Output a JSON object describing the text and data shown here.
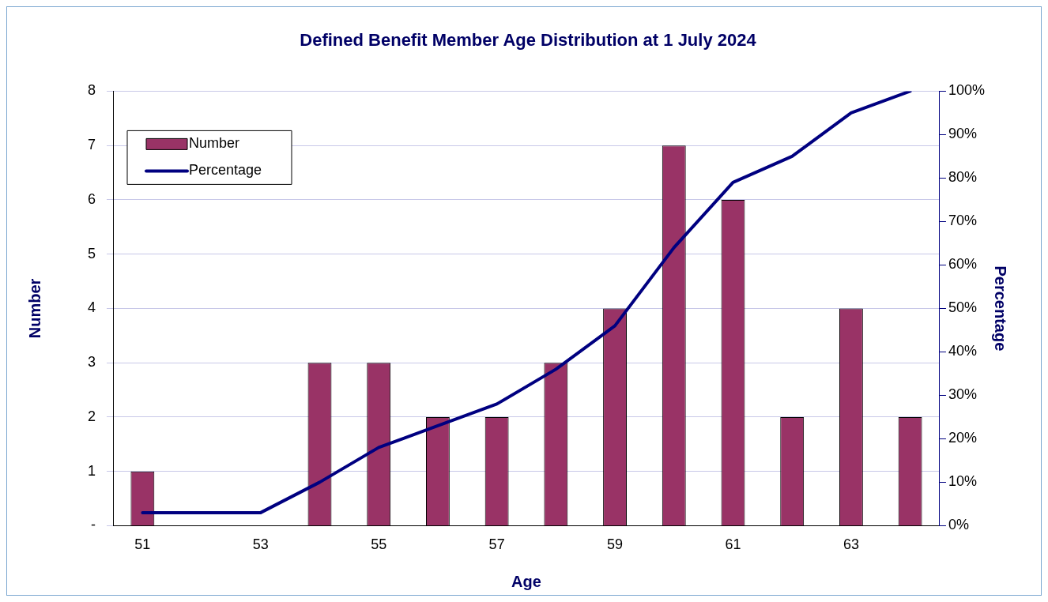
{
  "chart_data": {
    "type": "bar",
    "title": "Defined Benefit Member Age Distribution at 1 July 2024",
    "xlabel": "Age",
    "ylabel": "Number",
    "y2label": "Percentage",
    "categories": [
      "51",
      null,
      "53",
      null,
      "55",
      null,
      "57",
      null,
      "59",
      null,
      "61",
      null,
      "63",
      null
    ],
    "series": [
      {
        "name": "Number",
        "color": "#993366",
        "values": [
          1,
          0,
          0,
          3,
          3,
          2,
          2,
          3,
          4,
          7,
          6,
          2,
          4,
          2
        ]
      },
      {
        "name": "Percentage",
        "type": "line",
        "axis": "y2",
        "color": "#000080",
        "values": [
          3,
          3,
          3,
          10,
          18,
          23,
          28,
          36,
          46,
          64,
          79,
          85,
          95,
          100
        ]
      }
    ],
    "ylim": [
      0,
      8
    ],
    "yticks": [
      {
        "value": 0,
        "label": "-"
      },
      1,
      2,
      3,
      4,
      5,
      6,
      7,
      8
    ],
    "y2lim": [
      0,
      100
    ],
    "y2ticks": [
      {
        "value": 0,
        "label": "0%"
      },
      {
        "value": 10,
        "label": "10%"
      },
      {
        "value": 20,
        "label": "20%"
      },
      {
        "value": 30,
        "label": "30%"
      },
      {
        "value": 40,
        "label": "40%"
      },
      {
        "value": 50,
        "label": "50%"
      },
      {
        "value": 60,
        "label": "60%"
      },
      {
        "value": 70,
        "label": "70%"
      },
      {
        "value": 80,
        "label": "80%"
      },
      {
        "value": 90,
        "label": "90%"
      },
      {
        "value": 100,
        "label": "100%"
      }
    ],
    "grid": "y",
    "legend": "top left",
    "marker": "none",
    "line_style": "solid"
  }
}
